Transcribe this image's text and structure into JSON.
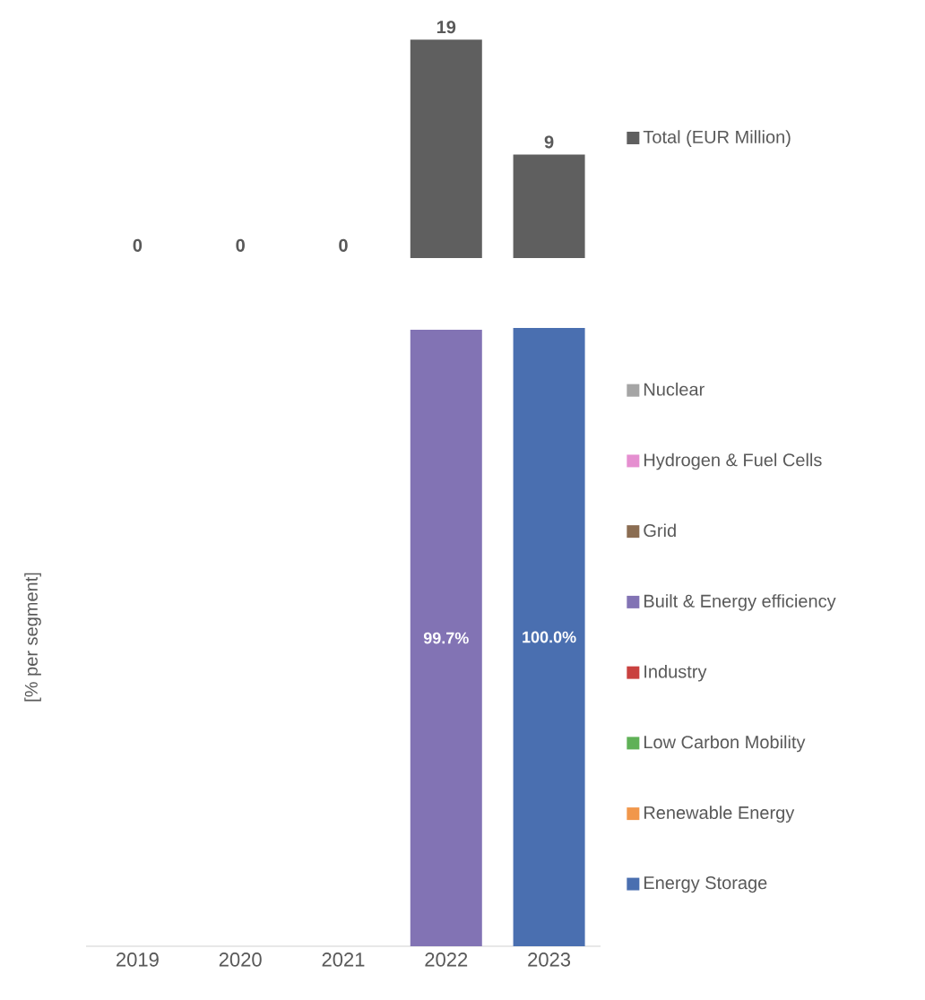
{
  "chart_data": [
    {
      "type": "bar",
      "categories": [
        "2019",
        "2020",
        "2021",
        "2022",
        "2023"
      ],
      "tick_labels": false,
      "legend": "right",
      "data_labels": true,
      "series": [
        {
          "name": "Total (EUR Million)",
          "color": "#5f5f5f",
          "values": [
            0,
            0,
            0,
            19,
            9
          ]
        }
      ]
    },
    {
      "type": "bar",
      "stacked": true,
      "categories": [
        "2019",
        "2020",
        "2021",
        "2022",
        "2023"
      ],
      "ylabel": "[% per segment]",
      "tick_labels": "x",
      "legend": "right",
      "series": [
        {
          "name": "Energy Storage",
          "color": "#4a6fb0",
          "values": [
            0,
            0,
            0,
            0,
            100.0
          ],
          "value_labels": [
            null,
            null,
            null,
            null,
            "100.0%"
          ]
        },
        {
          "name": "Renewable Energy",
          "color": "#f1974b",
          "values": [
            0,
            0,
            0,
            0,
            0
          ],
          "value_labels": [
            null,
            null,
            null,
            null,
            null
          ]
        },
        {
          "name": "Low Carbon Mobility",
          "color": "#5fb157",
          "values": [
            0,
            0,
            0,
            0,
            0
          ],
          "value_labels": [
            null,
            null,
            null,
            null,
            null
          ]
        },
        {
          "name": "Industry",
          "color": "#c9413f",
          "values": [
            0,
            0,
            0,
            0,
            0
          ],
          "value_labels": [
            null,
            null,
            null,
            null,
            null
          ]
        },
        {
          "name": "Built & Energy efficiency",
          "color": "#8273b4",
          "values": [
            0,
            0,
            0,
            99.7,
            0
          ],
          "value_labels": [
            null,
            null,
            null,
            "99.7%",
            null
          ]
        },
        {
          "name": "Grid",
          "color": "#8b6d52",
          "values": [
            0,
            0,
            0,
            0,
            0
          ],
          "value_labels": [
            null,
            null,
            null,
            null,
            null
          ]
        },
        {
          "name": "Hydrogen & Fuel Cells",
          "color": "#e58fd0",
          "values": [
            0,
            0,
            0,
            0,
            0
          ],
          "value_labels": [
            null,
            null,
            null,
            null,
            null
          ]
        },
        {
          "name": "Nuclear",
          "color": "#a5a5a5",
          "values": [
            0,
            0,
            0,
            0,
            0
          ],
          "value_labels": [
            null,
            null,
            null,
            null,
            null
          ]
        }
      ]
    }
  ]
}
